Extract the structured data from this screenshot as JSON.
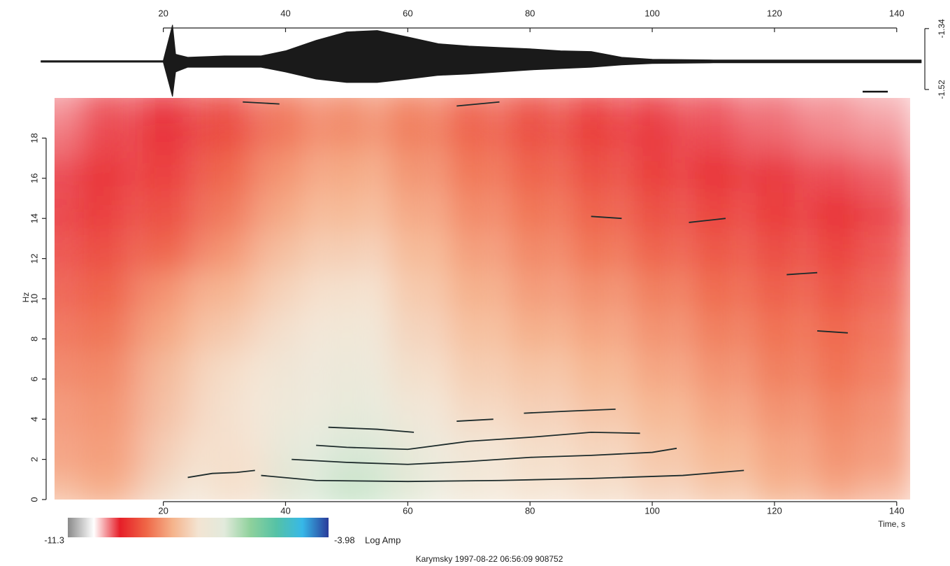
{
  "chart_data": [
    {
      "type": "envelope",
      "color": "#1a1a1a",
      "x": [
        0,
        20,
        21.5,
        22,
        24,
        30,
        36,
        40,
        45,
        50,
        55,
        60,
        65,
        70,
        75,
        80,
        85,
        90,
        95,
        100,
        110,
        120,
        144
      ],
      "upper": [
        -1.435,
        -1.435,
        -1.33,
        -1.416,
        -1.425,
        -1.421,
        -1.421,
        -1.406,
        -1.375,
        -1.35,
        -1.346,
        -1.365,
        -1.385,
        -1.392,
        -1.396,
        -1.4,
        -1.406,
        -1.408,
        -1.425,
        -1.431,
        -1.433,
        -1.433,
        -1.433
      ],
      "lower": [
        -1.439,
        -1.439,
        -1.54,
        -1.468,
        -1.454,
        -1.454,
        -1.454,
        -1.468,
        -1.489,
        -1.499,
        -1.499,
        -1.489,
        -1.478,
        -1.474,
        -1.468,
        -1.462,
        -1.458,
        -1.454,
        -1.447,
        -1.443,
        -1.441,
        -1.441,
        -1.441
      ],
      "xlim": [
        2.2,
        142.2
      ],
      "xticks": [
        20,
        40,
        60,
        80,
        100,
        120,
        140
      ],
      "y2lim": [
        -1.545,
        -1.33
      ],
      "y2ticks": [
        -1.34,
        -1.52
      ]
    },
    {
      "type": "heatmap",
      "xlabel": "Time, s",
      "ylabel": "Hz",
      "colorbar_label": "Log Amp",
      "caption": "Karymsky 1997-08-22 06:56:09 908752",
      "xlim": [
        2.2,
        142.2
      ],
      "ylim": [
        0,
        20
      ],
      "xticks": [
        20,
        40,
        60,
        80,
        100,
        120,
        140
      ],
      "yticks": [
        0,
        2,
        4,
        6,
        8,
        10,
        12,
        14,
        16,
        18
      ],
      "zlim": [
        -11.3,
        -3.98
      ],
      "colors": [
        "#8a8a8a",
        "#ffffff",
        "#e61e28",
        "#ef6646",
        "#f5b28a",
        "#f3e4d2",
        "#e2eadc",
        "#8fd19c",
        "#55c2a6",
        "#37b8e8",
        "#2a3b9a"
      ],
      "x": [
        5,
        15,
        25,
        35,
        45,
        55,
        65,
        75,
        85,
        95,
        105,
        115,
        125,
        135
      ],
      "y": [
        1,
        3,
        5,
        7,
        9,
        11,
        13,
        15,
        17,
        19
      ],
      "z": [
        [
          -8.5,
          -8.5,
          -7.5,
          -7.8,
          -6.8,
          -6.6,
          -7.2,
          -7.6,
          -7.7,
          -7.8,
          -8.0,
          -8.2,
          -8.5,
          -8.6
        ],
        [
          -8.7,
          -8.6,
          -7.8,
          -7.7,
          -6.9,
          -6.8,
          -7.3,
          -7.6,
          -7.8,
          -7.9,
          -8.2,
          -8.4,
          -8.6,
          -8.8
        ],
        [
          -8.8,
          -8.7,
          -8.0,
          -7.6,
          -7.3,
          -7.1,
          -7.6,
          -7.9,
          -8.0,
          -8.2,
          -8.4,
          -8.6,
          -8.8,
          -8.9
        ],
        [
          -9.0,
          -8.8,
          -8.1,
          -7.7,
          -7.4,
          -7.3,
          -7.8,
          -8.1,
          -8.2,
          -8.4,
          -8.6,
          -8.8,
          -9.0,
          -9.1
        ],
        [
          -9.2,
          -9.0,
          -8.4,
          -8.0,
          -7.6,
          -7.5,
          -8.0,
          -8.3,
          -8.5,
          -8.6,
          -8.8,
          -9.0,
          -9.1,
          -9.2
        ],
        [
          -9.4,
          -9.2,
          -8.6,
          -8.3,
          -7.8,
          -7.7,
          -8.2,
          -8.5,
          -8.7,
          -8.8,
          -9.0,
          -9.2,
          -9.3,
          -9.4
        ],
        [
          -9.6,
          -9.4,
          -9.2,
          -8.6,
          -8.1,
          -8.0,
          -8.4,
          -8.7,
          -8.9,
          -9.1,
          -9.3,
          -9.4,
          -9.5,
          -9.6
        ],
        [
          -9.8,
          -9.6,
          -9.4,
          -8.9,
          -8.4,
          -8.3,
          -8.6,
          -8.9,
          -9.1,
          -9.3,
          -9.5,
          -9.6,
          -9.7,
          -9.8
        ],
        [
          -9.9,
          -9.7,
          -9.6,
          -9.1,
          -8.6,
          -8.5,
          -8.8,
          -9.1,
          -9.3,
          -9.5,
          -9.7,
          -9.8,
          -9.9,
          -10.0
        ],
        [
          -10.1,
          -9.9,
          -9.8,
          -9.4,
          -8.9,
          -8.8,
          -9.0,
          -9.3,
          -9.5,
          -9.7,
          -9.9,
          -10.0,
          -10.1,
          -10.2
        ]
      ],
      "line_color": "#1d2b2b",
      "lines": [
        {
          "x": [
            24,
            28,
            32,
            35
          ],
          "y": [
            1.1,
            1.3,
            1.35,
            1.45
          ]
        },
        {
          "x": [
            36,
            45,
            60,
            75,
            90,
            105,
            115
          ],
          "y": [
            1.2,
            0.95,
            0.9,
            0.95,
            1.05,
            1.2,
            1.45
          ]
        },
        {
          "x": [
            41,
            50,
            60,
            70,
            80,
            90,
            100,
            104
          ],
          "y": [
            2.0,
            1.85,
            1.75,
            1.9,
            2.1,
            2.2,
            2.35,
            2.55
          ]
        },
        {
          "x": [
            45,
            50,
            60,
            70,
            80,
            90,
            98
          ],
          "y": [
            2.7,
            2.6,
            2.5,
            2.9,
            3.1,
            3.35,
            3.3
          ]
        },
        {
          "x": [
            47,
            55,
            61
          ],
          "y": [
            3.6,
            3.5,
            3.35
          ]
        },
        {
          "x": [
            68,
            74
          ],
          "y": [
            3.9,
            4.0
          ]
        },
        {
          "x": [
            79,
            86,
            94
          ],
          "y": [
            4.3,
            4.4,
            4.5
          ]
        },
        {
          "x": [
            90,
            95
          ],
          "y": [
            14.1,
            14.0
          ]
        },
        {
          "x": [
            106,
            112
          ],
          "y": [
            13.8,
            14.0
          ]
        },
        {
          "x": [
            122,
            127
          ],
          "y": [
            11.2,
            11.3
          ]
        },
        {
          "x": [
            127,
            132
          ],
          "y": [
            8.4,
            8.3
          ]
        },
        {
          "x": [
            33,
            39
          ],
          "y": [
            19.8,
            19.7
          ]
        },
        {
          "x": [
            68,
            75
          ],
          "y": [
            19.6,
            19.8
          ]
        }
      ]
    }
  ]
}
